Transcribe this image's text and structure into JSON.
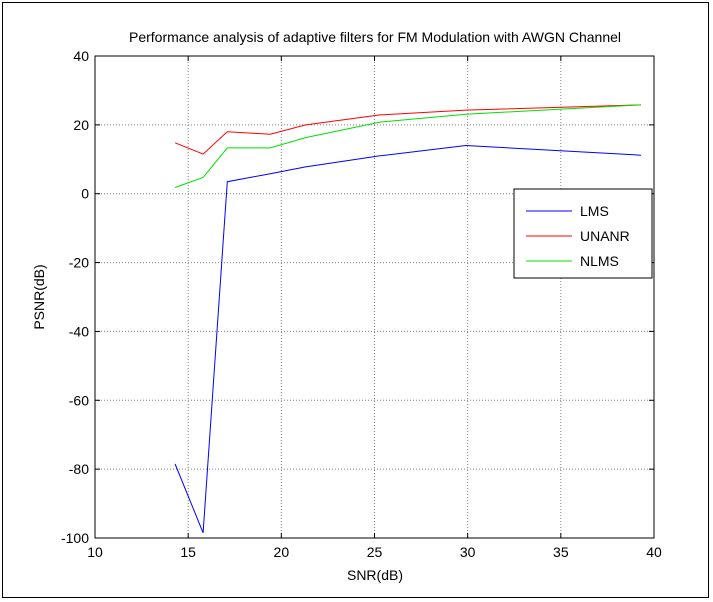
{
  "chart_data": {
    "type": "line",
    "title": "Performance analysis of adaptive filters for FM Modulation with AWGN Channel",
    "xlabel": "SNR(dB)",
    "ylabel": "PSNR(dB)",
    "xlim": [
      10,
      40
    ],
    "ylim": [
      -100,
      40
    ],
    "xticks": [
      10,
      15,
      20,
      25,
      30,
      35,
      40
    ],
    "yticks": [
      -100,
      -80,
      -60,
      -40,
      -20,
      0,
      20,
      40
    ],
    "grid": true,
    "legend": "right",
    "series": [
      {
        "name": "LMS",
        "color": "#0000ff",
        "x": [
          14.3,
          15.8,
          17.1,
          19.4,
          21.3,
          25.3,
          29.9,
          39.3
        ],
        "y": [
          -78.5,
          -98.5,
          3.5,
          5.8,
          7.8,
          11,
          14,
          11.2
        ]
      },
      {
        "name": "UNANR",
        "color": "#ff0000",
        "x": [
          14.3,
          15.8,
          17.1,
          19.4,
          21.3,
          25.3,
          29.9,
          39.3
        ],
        "y": [
          14.8,
          11.5,
          18,
          17.3,
          20,
          22.9,
          24.3,
          25.8
        ]
      },
      {
        "name": "NLMS",
        "color": "#00e000",
        "x": [
          14.3,
          15.8,
          17.1,
          19.4,
          21.3,
          25.3,
          29.9,
          39.3
        ],
        "y": [
          1.8,
          4.7,
          13.3,
          13.3,
          16.3,
          20.8,
          23.1,
          25.8
        ]
      }
    ]
  }
}
